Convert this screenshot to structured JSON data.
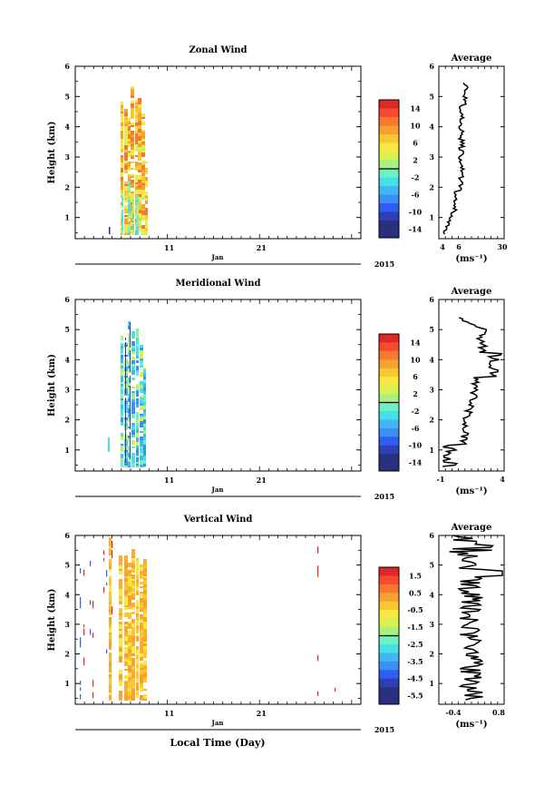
{
  "figure": {
    "x_axis_label": "Local Time (Day)",
    "average_label": "Average"
  },
  "colorbar_unit": "(ms⁻¹)",
  "chart_data": [
    {
      "type": "heatmap",
      "title": "Zonal Wind",
      "ylabel": "Height (km)",
      "ylim": [
        0.3,
        6
      ],
      "yticks": [
        1,
        2,
        3,
        4,
        5,
        6
      ],
      "xticks": [
        "11",
        "21"
      ],
      "month": "Jan",
      "year": "2015",
      "colorbar": {
        "ticks": [
          "14",
          "10",
          "6",
          "2",
          "-2",
          "-6",
          "-10",
          "-14"
        ],
        "min": -16,
        "max": 16
      },
      "average": {
        "title": "Average",
        "xlabel": "(ms⁻¹)",
        "xlim": [
          4,
          30
        ],
        "xticks": [
          "4",
          "6",
          "30"
        ],
        "ylim": [
          0.3,
          6
        ]
      }
    },
    {
      "type": "heatmap",
      "title": "Meridional Wind",
      "ylabel": "Height (km)",
      "ylim": [
        0.3,
        6
      ],
      "yticks": [
        1,
        2,
        3,
        4,
        5,
        6
      ],
      "xticks": [
        "11",
        "21"
      ],
      "month": "Jan",
      "year": "2015",
      "colorbar": {
        "ticks": [
          "14",
          "10",
          "6",
          "2",
          "-2",
          "-6",
          "-10",
          "-14"
        ],
        "min": -16,
        "max": 16
      },
      "average": {
        "title": "Average",
        "xlabel": "(ms⁻¹)",
        "xlim": [
          -1,
          4
        ],
        "xticks": [
          "-1",
          "4"
        ],
        "ylim": [
          0.3,
          6
        ]
      }
    },
    {
      "type": "heatmap",
      "title": "Vertical Wind",
      "ylabel": "Height (km)",
      "ylim": [
        0.3,
        6
      ],
      "yticks": [
        1,
        2,
        3,
        4,
        5,
        6
      ],
      "xticks": [
        "11",
        "21"
      ],
      "month": "Jan",
      "year": "2015",
      "xlabel": "Local Time (Day)",
      "colorbar": {
        "ticks": [
          "1.5",
          "0.5",
          "-0.5",
          "-1.5",
          "-2.5",
          "-3.5",
          "-4.5",
          "-5.5"
        ],
        "min": -6,
        "max": 2
      },
      "average": {
        "title": "Average",
        "xlabel": "(ms⁻¹)",
        "xlim": [
          -0.8,
          1.0
        ],
        "xticks": [
          "-0.4",
          "0.8"
        ],
        "ylim": [
          0.3,
          6
        ]
      }
    }
  ]
}
